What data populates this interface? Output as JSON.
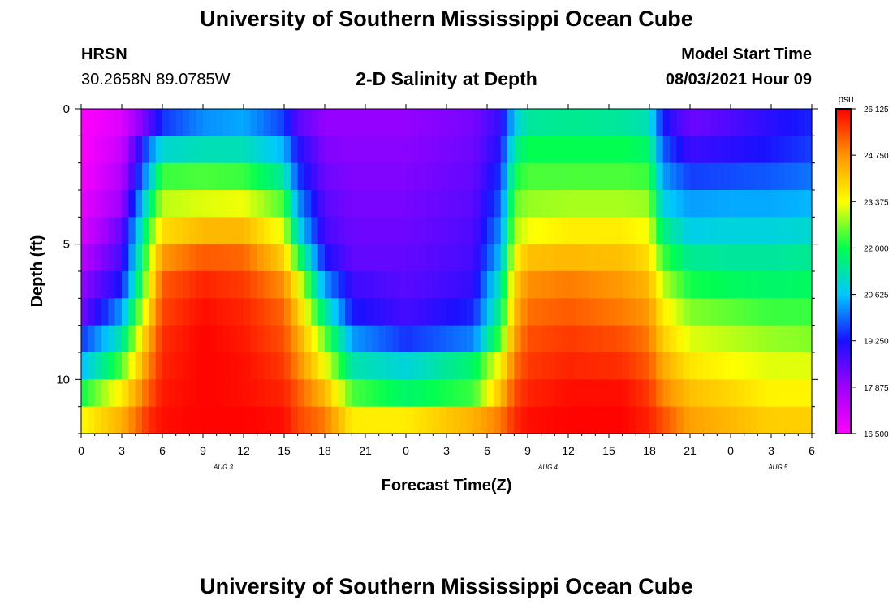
{
  "header": {
    "title": "University of Southern Mississippi Ocean Cube",
    "station": "HRSN",
    "coords": "30.2658N  89.0785W",
    "subtitle": "2-D Salinity at Depth",
    "model_start_label": "Model Start Time",
    "model_start_value": "08/03/2021 Hour 09"
  },
  "footer": {
    "title": "University of Southern Mississippi Ocean Cube"
  },
  "chart_data": {
    "type": "heatmap",
    "title": "2-D Salinity at Depth",
    "xlabel": "Forecast Time(Z)",
    "ylabel": "Depth (ft)",
    "x_tick_labels": [
      "0",
      "3",
      "6",
      "9",
      "12",
      "15",
      "18",
      "21",
      "0",
      "3",
      "6",
      "9",
      "12",
      "15",
      "18",
      "21",
      "0",
      "3",
      "6"
    ],
    "date_labels": [
      {
        "label": "AUG 3",
        "at_hour": 10.5
      },
      {
        "label": "AUG 4",
        "at_hour": 34.5
      },
      {
        "label": "AUG 5",
        "at_hour": 51.5
      }
    ],
    "x_range_hours": [
      0,
      54
    ],
    "y_ticks": [
      "0",
      "5",
      "10"
    ],
    "y_range_ft": [
      0,
      12
    ],
    "colorbar": {
      "unit": "psu",
      "min": 16.5,
      "max": 26.125,
      "tick_labels": [
        "26.125",
        "24.750",
        "23.375",
        "22.000",
        "20.625",
        "19.250",
        "17.875",
        "16.500"
      ],
      "colors": [
        "#ff00ff",
        "#a000ff",
        "#1a10ff",
        "#00c8ff",
        "#00ff50",
        "#ffff00",
        "#ff9600",
        "#ff0000"
      ]
    },
    "depths_ft": [
      0.5,
      1.5,
      2.5,
      3.5,
      4.5,
      5.5,
      6.5,
      7.5,
      8.5,
      9.5,
      10.5,
      11.5
    ],
    "series": [
      {
        "hour": 0,
        "values": [
          16.5,
          16.5,
          16.6,
          16.8,
          17.0,
          17.5,
          18.0,
          18.3,
          19.5,
          20.5,
          22.0,
          23.4
        ]
      },
      {
        "hour": 3,
        "values": [
          17.0,
          17.3,
          17.6,
          17.9,
          18.5,
          18.8,
          19.3,
          20.3,
          21.3,
          22.4,
          23.6,
          24.4
        ]
      },
      {
        "hour": 5,
        "values": [
          18.6,
          20.0,
          20.6,
          21.5,
          22.3,
          22.8,
          23.3,
          23.9,
          24.5,
          24.9,
          25.3,
          25.7
        ]
      },
      {
        "hour": 6,
        "values": [
          19.5,
          21.0,
          22.3,
          23.0,
          23.8,
          24.7,
          25.3,
          25.5,
          25.7,
          25.8,
          25.9,
          26.0
        ]
      },
      {
        "hour": 9,
        "values": [
          20.2,
          21.2,
          22.4,
          23.2,
          24.3,
          25.3,
          25.8,
          26.0,
          26.1,
          26.1,
          26.1,
          26.1
        ]
      },
      {
        "hour": 12,
        "values": [
          20.4,
          21.2,
          22.3,
          23.3,
          24.3,
          25.2,
          25.6,
          25.8,
          25.9,
          26.0,
          26.0,
          26.1
        ]
      },
      {
        "hour": 15,
        "values": [
          19.6,
          20.5,
          21.4,
          22.4,
          23.2,
          24.0,
          24.8,
          25.2,
          25.4,
          25.6,
          25.8,
          26.0
        ]
      },
      {
        "hour": 16,
        "values": [
          18.6,
          19.2,
          19.6,
          20.3,
          21.0,
          22.2,
          23.5,
          24.1,
          24.6,
          24.9,
          25.3,
          25.5
        ]
      },
      {
        "hour": 18,
        "values": [
          18.0,
          18.2,
          18.4,
          18.6,
          18.8,
          19.3,
          20.3,
          21.5,
          22.6,
          23.4,
          24.3,
          25.0
        ]
      },
      {
        "hour": 20,
        "values": [
          18.0,
          18.1,
          18.2,
          18.3,
          18.4,
          18.5,
          18.9,
          19.3,
          20.3,
          21.3,
          22.4,
          23.6
        ]
      },
      {
        "hour": 24,
        "values": [
          18.0,
          18.1,
          18.2,
          18.3,
          18.4,
          18.5,
          18.6,
          18.8,
          19.5,
          20.9,
          21.8,
          23.6
        ]
      },
      {
        "hour": 29,
        "values": [
          18.3,
          18.4,
          18.5,
          18.6,
          18.7,
          18.8,
          19.0,
          19.4,
          20.1,
          21.8,
          22.3,
          24.4
        ]
      },
      {
        "hour": 31,
        "values": [
          19.0,
          19.2,
          19.5,
          19.8,
          20.2,
          20.6,
          21.3,
          21.7,
          22.4,
          23.5,
          24.2,
          25.0
        ]
      },
      {
        "hour": 32,
        "values": [
          20.7,
          21.4,
          22.0,
          22.5,
          22.9,
          23.4,
          23.9,
          24.2,
          24.6,
          25.0,
          25.4,
          25.7
        ]
      },
      {
        "hour": 33,
        "values": [
          21.4,
          22.0,
          22.4,
          22.8,
          23.3,
          24.2,
          24.8,
          25.1,
          25.4,
          25.6,
          25.8,
          26.0
        ]
      },
      {
        "hour": 36,
        "values": [
          21.5,
          22.0,
          22.4,
          22.9,
          23.6,
          24.3,
          25.0,
          25.3,
          25.6,
          25.8,
          26.0,
          26.1
        ]
      },
      {
        "hour": 40,
        "values": [
          21.4,
          22.0,
          22.4,
          22.9,
          23.6,
          24.2,
          24.7,
          25.0,
          25.4,
          25.7,
          26.0,
          26.1
        ]
      },
      {
        "hour": 42,
        "values": [
          21.2,
          21.8,
          22.3,
          22.8,
          23.3,
          23.8,
          24.3,
          24.7,
          25.0,
          25.3,
          25.6,
          25.8
        ]
      },
      {
        "hour": 43,
        "values": [
          19.3,
          19.8,
          20.3,
          20.8,
          21.6,
          22.3,
          23.0,
          23.6,
          24.0,
          24.5,
          24.9,
          25.4
        ]
      },
      {
        "hour": 45,
        "values": [
          18.4,
          18.9,
          19.6,
          20.3,
          20.8,
          21.5,
          22.1,
          22.7,
          23.2,
          23.7,
          24.2,
          24.6
        ]
      },
      {
        "hour": 48,
        "values": [
          18.7,
          19.1,
          19.7,
          20.4,
          20.9,
          21.4,
          21.9,
          22.5,
          23.0,
          23.4,
          23.9,
          24.3
        ]
      },
      {
        "hour": 51,
        "values": [
          19.1,
          19.3,
          19.8,
          20.4,
          20.9,
          21.4,
          21.8,
          22.3,
          22.8,
          23.2,
          23.5,
          24.0
        ]
      },
      {
        "hour": 54,
        "values": [
          19.4,
          19.6,
          20.0,
          20.5,
          21.0,
          21.5,
          21.9,
          22.3,
          22.7,
          23.2,
          23.5,
          24.0
        ]
      }
    ]
  }
}
